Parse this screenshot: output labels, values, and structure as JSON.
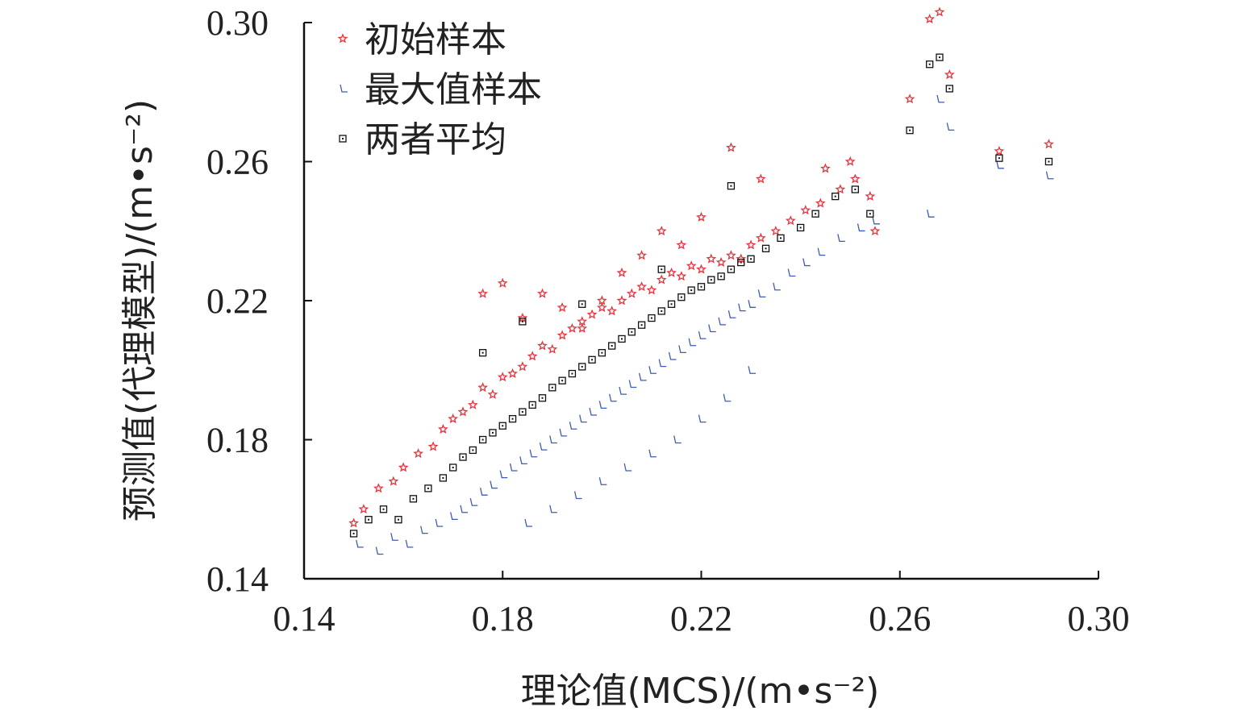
{
  "chart_data": {
    "type": "scatter",
    "title": "",
    "xlabel": "理论值(MCS)/(m•s⁻²)",
    "ylabel": "预测值(代理模型)/(m•s⁻²)",
    "xlim": [
      0.14,
      0.3
    ],
    "ylim": [
      0.14,
      0.3
    ],
    "xticks": [
      "0.14",
      "0.18",
      "0.22",
      "0.26",
      "0.30"
    ],
    "yticks": [
      "0.14",
      "0.18",
      "0.22",
      "0.26",
      "0.30"
    ],
    "grid": false,
    "legend_position": "top-left",
    "colors": {
      "initial": "#e8323c",
      "max": "#3f5bb5",
      "avg": "#111111"
    },
    "series": [
      {
        "name": "初始样本",
        "marker": "star",
        "x": [
          0.15,
          0.152,
          0.155,
          0.158,
          0.16,
          0.163,
          0.166,
          0.168,
          0.17,
          0.172,
          0.174,
          0.176,
          0.178,
          0.18,
          0.182,
          0.184,
          0.186,
          0.188,
          0.19,
          0.192,
          0.194,
          0.196,
          0.198,
          0.2,
          0.202,
          0.204,
          0.206,
          0.208,
          0.21,
          0.212,
          0.214,
          0.216,
          0.218,
          0.22,
          0.222,
          0.224,
          0.226,
          0.228,
          0.23,
          0.232,
          0.235,
          0.238,
          0.241,
          0.244,
          0.248,
          0.251,
          0.254,
          0.255,
          0.262,
          0.266,
          0.268,
          0.27,
          0.28,
          0.29,
          0.176,
          0.18,
          0.184,
          0.188,
          0.192,
          0.196,
          0.2,
          0.204,
          0.208,
          0.212,
          0.216,
          0.22,
          0.226,
          0.232,
          0.245,
          0.25
        ],
        "y": [
          0.156,
          0.16,
          0.166,
          0.168,
          0.172,
          0.176,
          0.178,
          0.183,
          0.186,
          0.188,
          0.19,
          0.195,
          0.193,
          0.198,
          0.199,
          0.201,
          0.204,
          0.207,
          0.206,
          0.21,
          0.212,
          0.214,
          0.216,
          0.218,
          0.217,
          0.22,
          0.222,
          0.224,
          0.223,
          0.226,
          0.228,
          0.227,
          0.23,
          0.229,
          0.232,
          0.231,
          0.233,
          0.232,
          0.236,
          0.238,
          0.24,
          0.243,
          0.246,
          0.248,
          0.252,
          0.255,
          0.25,
          0.24,
          0.278,
          0.301,
          0.303,
          0.285,
          0.263,
          0.265,
          0.222,
          0.225,
          0.215,
          0.222,
          0.218,
          0.212,
          0.22,
          0.228,
          0.233,
          0.24,
          0.236,
          0.244,
          0.264,
          0.255,
          0.258,
          0.26
        ]
      },
      {
        "name": "最大值样本",
        "marker": "check",
        "x": [
          0.151,
          0.155,
          0.158,
          0.161,
          0.164,
          0.167,
          0.17,
          0.172,
          0.174,
          0.176,
          0.178,
          0.18,
          0.182,
          0.184,
          0.186,
          0.188,
          0.19,
          0.192,
          0.194,
          0.196,
          0.198,
          0.2,
          0.202,
          0.204,
          0.206,
          0.208,
          0.21,
          0.212,
          0.214,
          0.216,
          0.218,
          0.22,
          0.222,
          0.224,
          0.226,
          0.228,
          0.23,
          0.232,
          0.235,
          0.238,
          0.241,
          0.244,
          0.248,
          0.252,
          0.255,
          0.266,
          0.268,
          0.27,
          0.28,
          0.29,
          0.185,
          0.19,
          0.195,
          0.2,
          0.205,
          0.21,
          0.215,
          0.22,
          0.225,
          0.23
        ],
        "y": [
          0.15,
          0.148,
          0.152,
          0.15,
          0.154,
          0.156,
          0.158,
          0.16,
          0.162,
          0.165,
          0.167,
          0.17,
          0.172,
          0.174,
          0.176,
          0.178,
          0.18,
          0.182,
          0.184,
          0.186,
          0.188,
          0.19,
          0.192,
          0.194,
          0.196,
          0.198,
          0.2,
          0.202,
          0.204,
          0.206,
          0.208,
          0.21,
          0.212,
          0.214,
          0.216,
          0.218,
          0.219,
          0.222,
          0.224,
          0.228,
          0.231,
          0.234,
          0.238,
          0.241,
          0.243,
          0.245,
          0.278,
          0.27,
          0.259,
          0.256,
          0.156,
          0.16,
          0.164,
          0.168,
          0.172,
          0.176,
          0.18,
          0.186,
          0.192,
          0.2
        ]
      },
      {
        "name": "两者平均",
        "marker": "square",
        "x": [
          0.15,
          0.153,
          0.156,
          0.159,
          0.162,
          0.165,
          0.168,
          0.17,
          0.172,
          0.174,
          0.176,
          0.178,
          0.18,
          0.182,
          0.184,
          0.186,
          0.188,
          0.19,
          0.192,
          0.194,
          0.196,
          0.198,
          0.2,
          0.202,
          0.204,
          0.206,
          0.208,
          0.21,
          0.212,
          0.214,
          0.216,
          0.218,
          0.22,
          0.222,
          0.224,
          0.226,
          0.228,
          0.23,
          0.233,
          0.236,
          0.24,
          0.243,
          0.247,
          0.251,
          0.254,
          0.262,
          0.266,
          0.268,
          0.27,
          0.28,
          0.29,
          0.176,
          0.184,
          0.196,
          0.212,
          0.226
        ],
        "y": [
          0.153,
          0.157,
          0.16,
          0.157,
          0.163,
          0.166,
          0.169,
          0.172,
          0.175,
          0.177,
          0.18,
          0.182,
          0.184,
          0.186,
          0.188,
          0.19,
          0.192,
          0.195,
          0.197,
          0.199,
          0.201,
          0.203,
          0.205,
          0.207,
          0.209,
          0.211,
          0.213,
          0.215,
          0.217,
          0.219,
          0.221,
          0.223,
          0.224,
          0.226,
          0.227,
          0.229,
          0.231,
          0.232,
          0.235,
          0.238,
          0.241,
          0.245,
          0.25,
          0.252,
          0.245,
          0.269,
          0.288,
          0.29,
          0.281,
          0.261,
          0.26,
          0.205,
          0.214,
          0.219,
          0.229,
          0.253
        ]
      }
    ]
  }
}
